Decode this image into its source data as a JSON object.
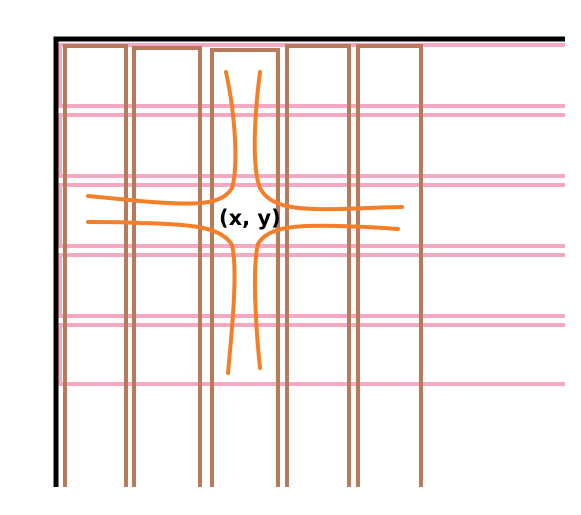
{
  "point_label": "(x, y)",
  "colors": {
    "frame": "#000000",
    "pink_strips": "#f4a8c4",
    "brown_strips": "#b87a5c",
    "orange_curves": "#f47f28",
    "label": "#000000"
  },
  "element_counts": {
    "vertical_brown_strips": 5,
    "horizontal_pink_strips": 5,
    "hyperbola_branches": 4
  }
}
